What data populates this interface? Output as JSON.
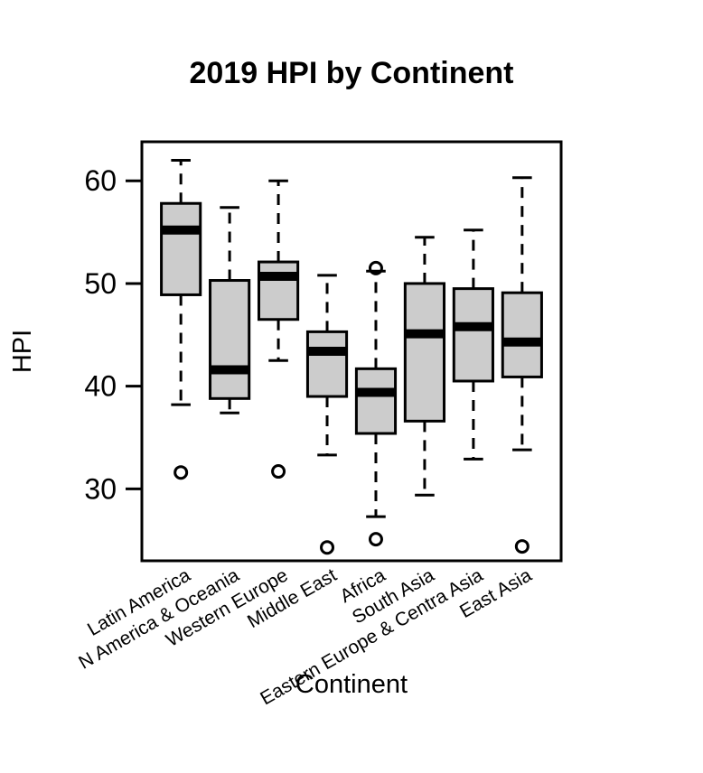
{
  "chart_data": {
    "type": "boxplot",
    "title": "2019 HPI by Continent",
    "xlabel": "Continent",
    "ylabel": "HPI",
    "ylim": [
      23,
      63.8
    ],
    "yticks": [
      30,
      40,
      50,
      60
    ],
    "grid": false,
    "legend": "none",
    "box_fill": "#cccccc",
    "categories": [
      "Latin America",
      "N America & Oceania",
      "Western Europe",
      "Middle East",
      "Africa",
      "South Asia",
      "Eastern Europe & Centra Asia",
      "East Asia"
    ],
    "boxes": [
      {
        "whisker_low": 38.2,
        "q1": 48.9,
        "median": 55.2,
        "q3": 57.8,
        "whisker_high": 62.0,
        "outliers": [
          31.6
        ]
      },
      {
        "whisker_low": 37.4,
        "q1": 38.8,
        "median": 41.6,
        "q3": 50.3,
        "whisker_high": 57.4,
        "outliers": []
      },
      {
        "whisker_low": 42.5,
        "q1": 46.5,
        "median": 50.7,
        "q3": 52.1,
        "whisker_high": 60.0,
        "outliers": [
          31.7
        ]
      },
      {
        "whisker_low": 33.3,
        "q1": 39.0,
        "median": 43.4,
        "q3": 45.3,
        "whisker_high": 50.8,
        "outliers": [
          24.3
        ]
      },
      {
        "whisker_low": 27.3,
        "q1": 35.4,
        "median": 39.4,
        "q3": 41.7,
        "whisker_high": 51.2,
        "outliers": [
          51.5,
          25.1
        ]
      },
      {
        "whisker_low": 29.4,
        "q1": 36.6,
        "median": 45.1,
        "q3": 50.0,
        "whisker_high": 54.5,
        "outliers": []
      },
      {
        "whisker_low": 32.9,
        "q1": 40.5,
        "median": 45.8,
        "q3": 49.5,
        "whisker_high": 55.2,
        "outliers": []
      },
      {
        "whisker_low": 33.8,
        "q1": 40.9,
        "median": 44.3,
        "q3": 49.1,
        "whisker_high": 60.3,
        "outliers": [
          24.4
        ]
      }
    ]
  }
}
